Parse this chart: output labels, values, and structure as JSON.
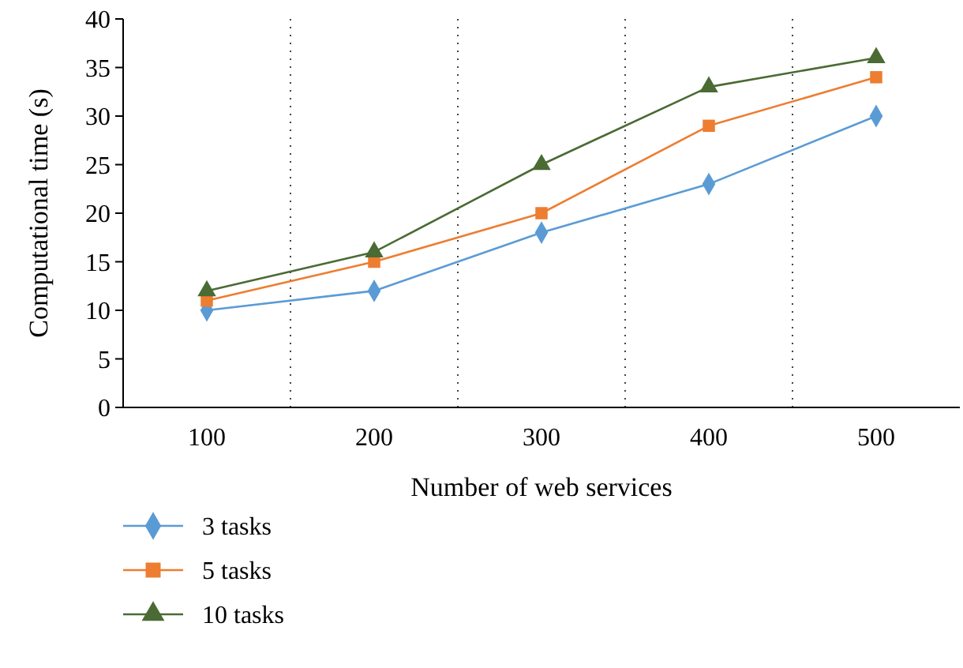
{
  "chart_data": {
    "type": "line",
    "xlabel": "Number of web services",
    "ylabel": "Computational time (s)",
    "categories": [
      "100",
      "200",
      "300",
      "400",
      "500"
    ],
    "series": [
      {
        "name": "3 tasks",
        "color": "#5b9bd5",
        "marker": "diamond",
        "values": [
          10,
          12,
          18,
          23,
          30
        ]
      },
      {
        "name": "5 tasks",
        "color": "#ed7d31",
        "marker": "square",
        "values": [
          11,
          15,
          20,
          29,
          34
        ]
      },
      {
        "name": "10 tasks",
        "color": "#4a6b34",
        "marker": "triangle",
        "values": [
          12,
          16,
          25,
          33,
          36
        ]
      }
    ],
    "ylim": [
      0,
      40
    ],
    "yticks": [
      0,
      5,
      10,
      15,
      20,
      25,
      30,
      35,
      40
    ],
    "grid": "x",
    "legend": "bottom left",
    "line_style": "solid"
  }
}
